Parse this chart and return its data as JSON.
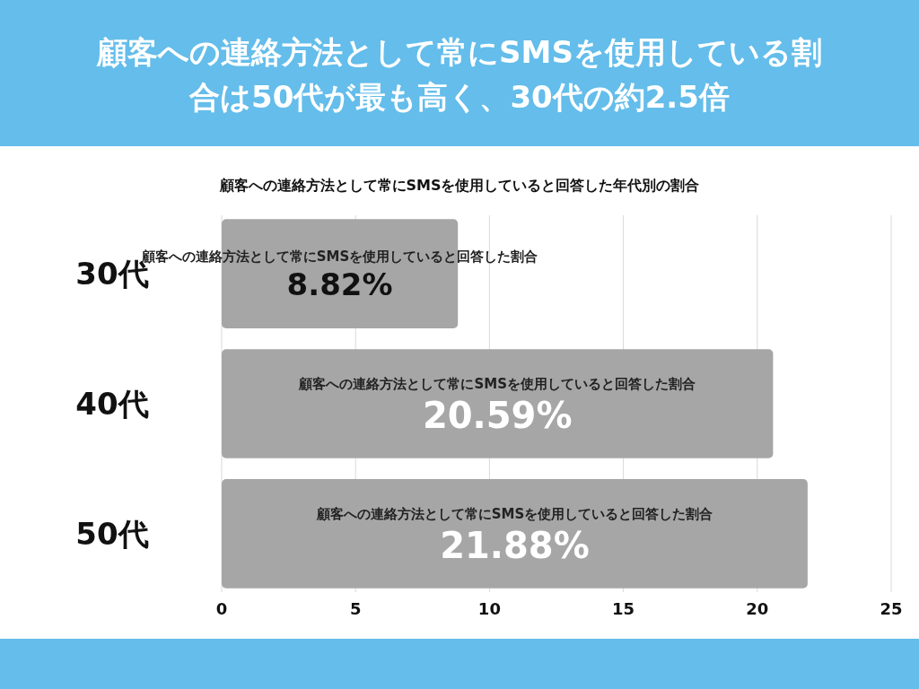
{
  "chart_data": {
    "type": "bar",
    "orientation": "horizontal",
    "title": "顧客への連絡方法として常にSMSを使用している割合は50代が最も高く、30代の約2.5倍",
    "subtitle": "顧客への連絡方法として常にSMSを使用していると回答した年代別の割合",
    "categories": [
      "30代",
      "40代",
      "50代"
    ],
    "series": [
      {
        "name": "顧客への連絡方法として常にSMSを使用していると回答した割合",
        "color": "#a6a6a6",
        "values": [
          8.82,
          20.59,
          21.88
        ],
        "value_labels": [
          "8.82%",
          "20.59%",
          "21.88%"
        ]
      }
    ],
    "xlim": [
      0,
      25
    ],
    "xticks": [
      0,
      5,
      10,
      15,
      20,
      25
    ],
    "grid": "x"
  }
}
